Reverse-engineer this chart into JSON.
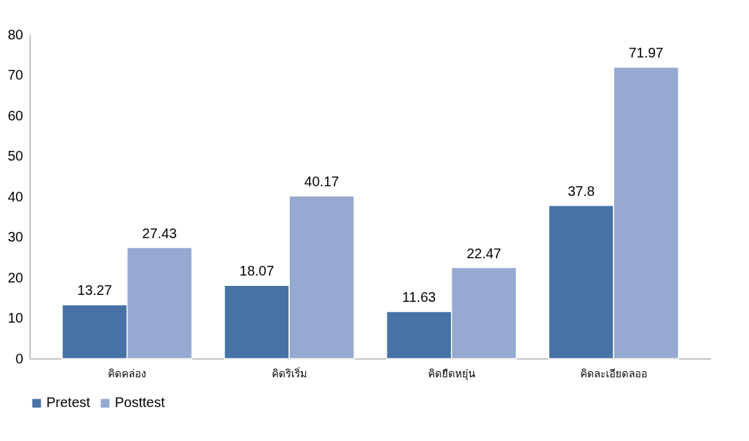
{
  "chart_data": {
    "type": "bar",
    "categories": [
      "คิดคล่อง",
      "คิดริเริ่ม",
      "คิดยืดหยุ่น",
      "คิดละเอียดลออ"
    ],
    "series": [
      {
        "name": "Pretest",
        "color": "#4672a6",
        "values": [
          13.27,
          18.07,
          11.63,
          37.8
        ]
      },
      {
        "name": "Posttest",
        "color": "#95a9d1",
        "values": [
          27.43,
          40.17,
          22.47,
          71.97
        ]
      }
    ],
    "ylim": [
      0,
      80
    ],
    "yticks": [
      0,
      10,
      20,
      30,
      40,
      50,
      60,
      70,
      80
    ],
    "grid": false,
    "legend": "bottom",
    "data_labels": true
  }
}
